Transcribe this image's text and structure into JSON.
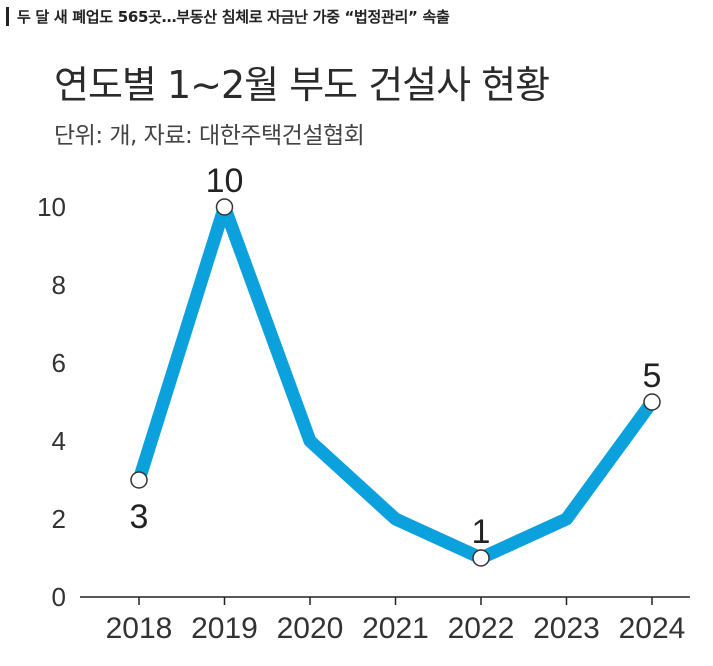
{
  "headline": "두 달 새 폐업도 565곳…부동산 침체로 자금난 가중 “법정관리” 속출",
  "chart_data": {
    "type": "line",
    "title": "연도별 1~2월 부도 건설사 현황",
    "subtitle": "단위: 개, 자료: 대한주택건설협회",
    "categories": [
      "2018",
      "2019",
      "2020",
      "2021",
      "2022",
      "2023",
      "2024"
    ],
    "values": [
      3,
      10,
      4,
      2,
      1,
      2,
      5
    ],
    "labeled_points": [
      {
        "index": 0,
        "label": "3",
        "position": "below"
      },
      {
        "index": 1,
        "label": "10",
        "position": "above"
      },
      {
        "index": 4,
        "label": "1",
        "position": "above"
      },
      {
        "index": 6,
        "label": "5",
        "position": "above"
      }
    ],
    "y_ticks": [
      0,
      2,
      4,
      6,
      8,
      10
    ],
    "ylim": [
      0,
      10
    ],
    "grid": false,
    "line_color": "#0aa1dd",
    "marker_fill": "#ffffff"
  }
}
